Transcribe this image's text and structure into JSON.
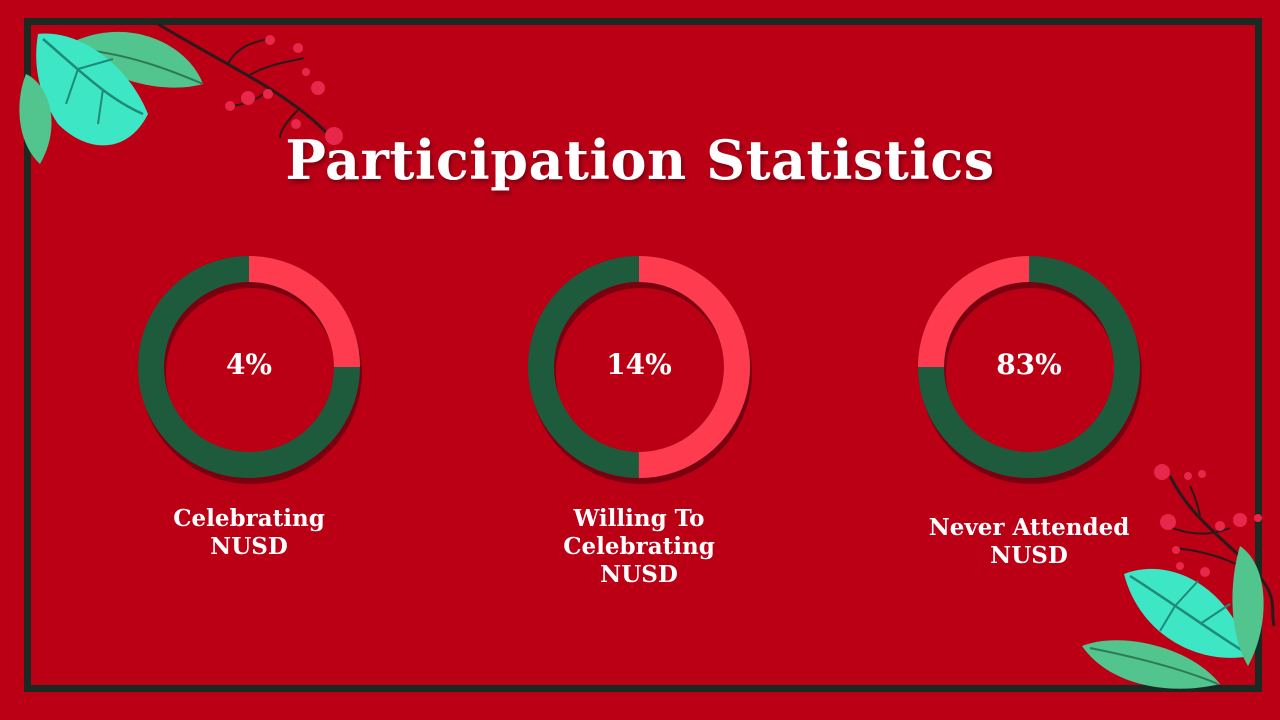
{
  "slide": {
    "title": "Participation Statistics"
  },
  "colors": {
    "background": "#bb0016",
    "frame": "#1a2a22",
    "ring_dark": "#1e5a3c",
    "ring_light": "#ff3b50",
    "leaf_light": "#3de6c4",
    "leaf_mid": "#52c48e",
    "berry": "#e8284a"
  },
  "chart_data": [
    {
      "type": "pie",
      "value_label": "4%",
      "label_line1": "Celebrating",
      "label_line2": "NUSD",
      "label_line3": ""
    },
    {
      "type": "pie",
      "value_label": "14%",
      "label_line1": "Willing To",
      "label_line2": "Celebrating",
      "label_line3": "NUSD"
    },
    {
      "type": "pie",
      "value_label": "83%",
      "label_line1": "Never Attended",
      "label_line2": "NUSD",
      "label_line3": ""
    }
  ]
}
